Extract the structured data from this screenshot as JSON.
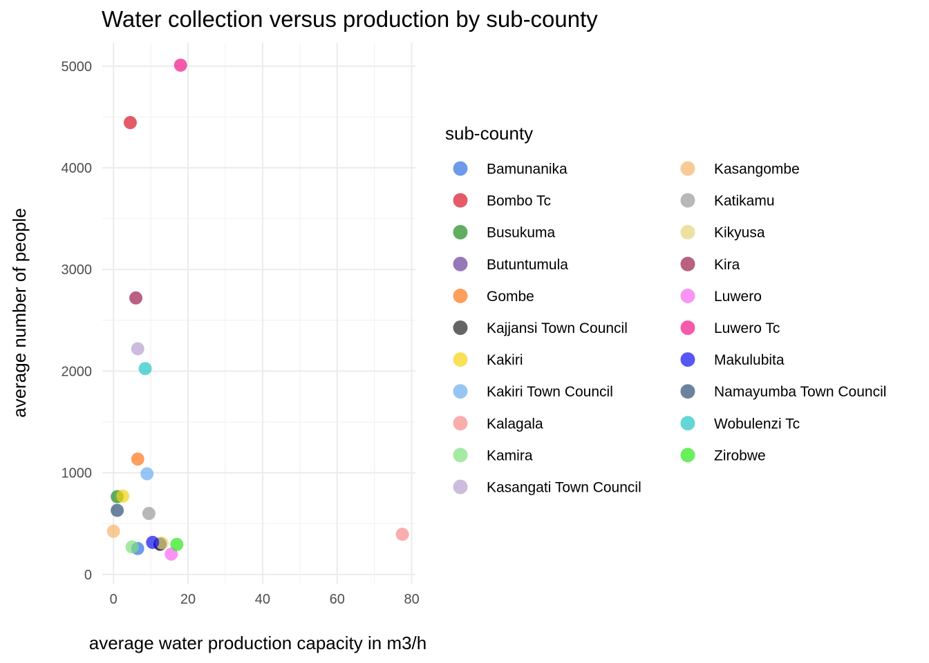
{
  "chart_data": {
    "type": "scatter",
    "title": "Water collection versus production by sub-county",
    "xlabel": "average water production capacity in m3/h",
    "ylabel": "average number of people",
    "xlim": [
      -3,
      81
    ],
    "ylim": [
      -90,
      5230
    ],
    "x_ticks": [
      0,
      20,
      40,
      60,
      80
    ],
    "y_ticks": [
      0,
      1000,
      2000,
      3000,
      4000,
      5000
    ],
    "grid": true,
    "legend_title": "sub-county",
    "legend_position": "right",
    "series": [
      {
        "name": "Bamunanika",
        "color": "#2f6fe0",
        "points": [
          [
            6.5,
            255
          ]
        ]
      },
      {
        "name": "Bombo Tc",
        "color": "#d7152a",
        "points": [
          [
            4.5,
            4445
          ]
        ]
      },
      {
        "name": "Busukuma",
        "color": "#1f8a1f",
        "points": [
          [
            1,
            765
          ]
        ]
      },
      {
        "name": "Butuntumula",
        "color": "#6a3d9a",
        "points": [
          [
            12.5,
            295
          ]
        ]
      },
      {
        "name": "Gombe",
        "color": "#ff7518",
        "points": [
          [
            6.5,
            1135
          ]
        ]
      },
      {
        "name": "Kajjansi Town Council",
        "color": "#222222",
        "points": [
          [
            12.5,
            300
          ]
        ]
      },
      {
        "name": "Kakiri",
        "color": "#f5d311",
        "points": [
          [
            2.5,
            770
          ]
        ]
      },
      {
        "name": "Kakiri Town Council",
        "color": "#6baef0",
        "points": [
          [
            9,
            990
          ]
        ]
      },
      {
        "name": "Kalagala",
        "color": "#f88a8a",
        "points": [
          [
            77.5,
            395
          ]
        ]
      },
      {
        "name": "Kamira",
        "color": "#7ee07e",
        "points": [
          [
            5,
            270
          ]
        ]
      },
      {
        "name": "Kasangati Town Council",
        "color": "#b79fd0",
        "points": [
          [
            6.5,
            2220
          ]
        ]
      },
      {
        "name": "Kasangombe",
        "color": "#f5b46a",
        "points": [
          [
            0,
            425
          ]
        ]
      },
      {
        "name": "Katikamu",
        "color": "#9a9a9a",
        "points": [
          [
            9.5,
            600
          ]
        ]
      },
      {
        "name": "Kikyusa",
        "color": "#e3d57a",
        "points": [
          [
            13,
            310
          ]
        ]
      },
      {
        "name": "Kira",
        "color": "#9b1e4a",
        "points": [
          [
            6,
            2720
          ]
        ]
      },
      {
        "name": "Luwero",
        "color": "#f766f2",
        "points": [
          [
            15.5,
            200
          ]
        ]
      },
      {
        "name": "Luwero Tc",
        "color": "#f0158a",
        "points": [
          [
            18,
            5010
          ]
        ]
      },
      {
        "name": "Makulubita",
        "color": "#1010ee",
        "points": [
          [
            10.5,
            315
          ]
        ]
      },
      {
        "name": "Namayumba Town Council",
        "color": "#2e4e78",
        "points": [
          [
            1,
            630
          ]
        ]
      },
      {
        "name": "Wobulenzi Tc",
        "color": "#22c4c4",
        "points": [
          [
            8.5,
            2025
          ]
        ]
      },
      {
        "name": "Zirobwe",
        "color": "#29e81a",
        "points": [
          [
            17,
            295
          ]
        ]
      }
    ]
  }
}
